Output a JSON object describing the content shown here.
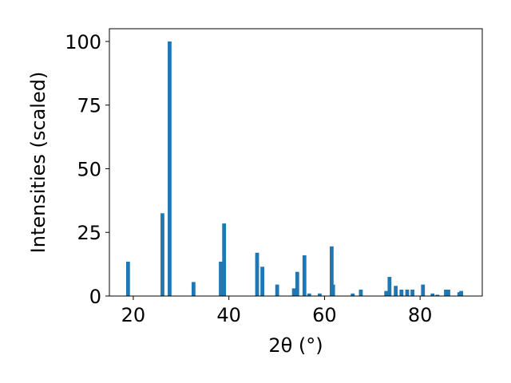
{
  "chart_data": {
    "type": "bar",
    "xlabel": "2θ (°)",
    "ylabel": "Intensities (scaled)",
    "xlim": [
      15,
      93
    ],
    "ylim": [
      0,
      105
    ],
    "grid": false,
    "bar_color": "#1f77b4",
    "bar_width": 0.8,
    "x_ticks": [
      {
        "value": 20,
        "label": "20"
      },
      {
        "value": 40,
        "label": "40"
      },
      {
        "value": 60,
        "label": "60"
      },
      {
        "value": 80,
        "label": "80"
      }
    ],
    "y_ticks": [
      {
        "value": 0,
        "label": "0"
      },
      {
        "value": 25,
        "label": "25"
      },
      {
        "value": 50,
        "label": "50"
      },
      {
        "value": 75,
        "label": "75"
      },
      {
        "value": 100,
        "label": "100"
      }
    ],
    "x": [
      18.9,
      26.1,
      27.6,
      32.6,
      38.3,
      39.0,
      45.9,
      47.0,
      50.1,
      53.6,
      54.3,
      55.8,
      56.8,
      59.0,
      61.5,
      61.8,
      65.9,
      67.6,
      72.9,
      73.6,
      74.9,
      76.1,
      77.3,
      78.4,
      80.6,
      82.6,
      83.6,
      85.4,
      85.9,
      88.2,
      88.6
    ],
    "values": [
      13.5,
      32.5,
      100.0,
      5.5,
      13.5,
      28.5,
      17.0,
      11.5,
      4.5,
      3.0,
      9.5,
      16.0,
      1.0,
      1.0,
      19.5,
      4.5,
      1.0,
      2.5,
      2.0,
      7.5,
      4.0,
      2.5,
      2.5,
      2.5,
      4.5,
      1.0,
      0.5,
      2.5,
      2.5,
      1.5,
      2.0
    ]
  }
}
